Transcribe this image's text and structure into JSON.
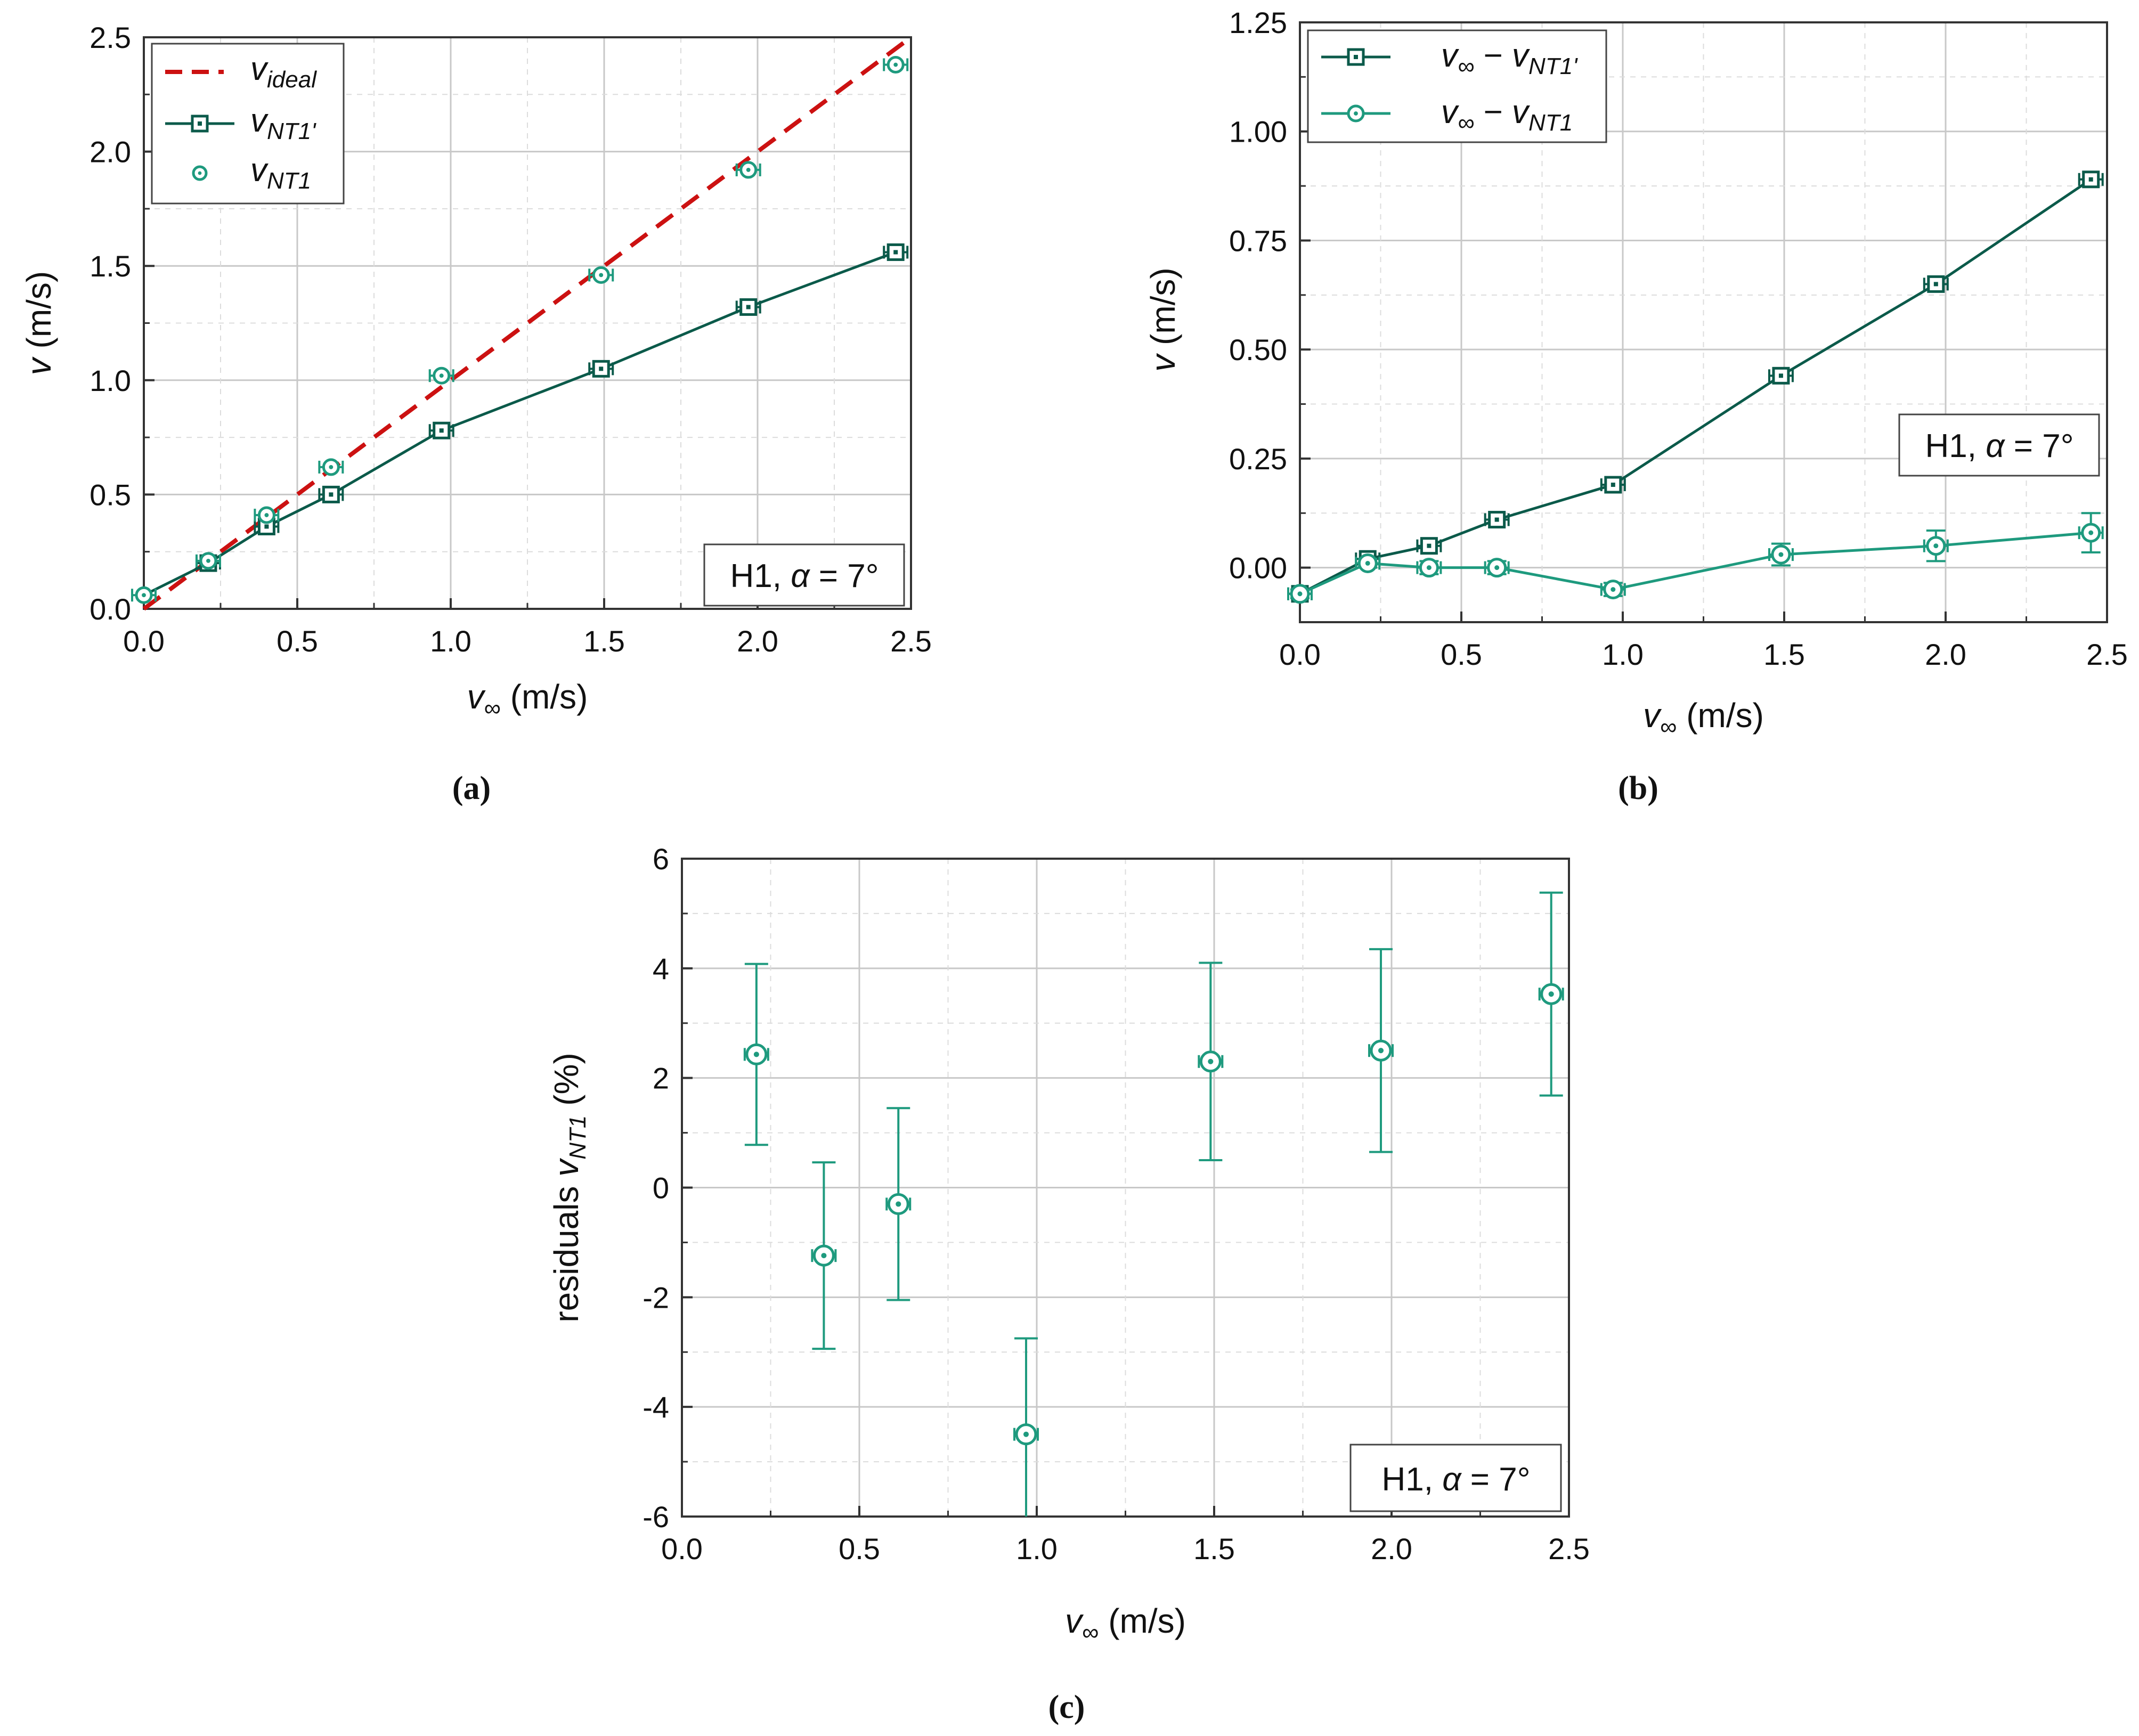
{
  "colors": {
    "dark": "#0b5a4a",
    "light": "#1e9a7e",
    "ideal": "#cc1111",
    "grid": "#c8c8c8",
    "axis": "#333333"
  },
  "chart_data": [
    {
      "panel": "a",
      "type": "line",
      "caption": "(a)",
      "xlabel": "v∞ (m/s)",
      "ylabel": "v (m/s)",
      "xlim": [
        0,
        2.5
      ],
      "ylim": [
        0,
        2.5
      ],
      "xticks": [
        "0.0",
        "0.5",
        "1.0",
        "1.5",
        "2.0",
        "2.5"
      ],
      "yticks": [
        "0.0",
        "0.5",
        "1.0",
        "1.5",
        "2.0",
        "2.5"
      ],
      "annotation": "H1, α = 7°",
      "legend": [
        "v_ideal",
        "v_NT1'",
        "v_NT1"
      ],
      "x": [
        0.0,
        0.21,
        0.4,
        0.61,
        0.97,
        1.49,
        1.97,
        2.45
      ],
      "series": [
        {
          "name": "v_ideal",
          "style": "dashed",
          "x": [
            0,
            2.5
          ],
          "values": [
            0,
            2.5
          ]
        },
        {
          "name": "v_NT1'",
          "style": "line-square",
          "values": [
            0.06,
            0.2,
            0.36,
            0.5,
            0.78,
            1.05,
            1.32,
            1.56
          ]
        },
        {
          "name": "v_NT1",
          "style": "circle",
          "values": [
            0.06,
            0.21,
            0.41,
            0.62,
            1.02,
            1.46,
            1.92,
            2.38
          ]
        }
      ]
    },
    {
      "panel": "b",
      "type": "line",
      "caption": "(b)",
      "xlabel": "v∞ (m/s)",
      "ylabel": "v (m/s)",
      "xlim": [
        0,
        2.5
      ],
      "ylim": [
        -0.125,
        1.25
      ],
      "xticks": [
        "0.0",
        "0.5",
        "1.0",
        "1.5",
        "2.0",
        "2.5"
      ],
      "yticks": [
        "0.00",
        "0.25",
        "0.50",
        "0.75",
        "1.00",
        "1.25"
      ],
      "annotation": "H1, α = 7°",
      "legend": [
        "v∞ − v_NT1'",
        "v∞ − v_NT1"
      ],
      "x": [
        0.0,
        0.21,
        0.4,
        0.61,
        0.97,
        1.49,
        1.97,
        2.45
      ],
      "series": [
        {
          "name": "v∞ − v_NT1'",
          "values": [
            -0.06,
            0.02,
            0.05,
            0.11,
            0.19,
            0.44,
            0.65,
            0.89
          ]
        },
        {
          "name": "v∞ − v_NT1",
          "values": [
            -0.06,
            0.01,
            0.0,
            0.0,
            -0.05,
            0.03,
            0.05,
            0.08
          ],
          "yerr": [
            0.01,
            0.01,
            0.015,
            0.015,
            0.015,
            0.025,
            0.035,
            0.045
          ]
        }
      ]
    },
    {
      "panel": "c",
      "type": "scatter",
      "caption": "(c)",
      "xlabel": "v∞ (m/s)",
      "ylabel": "residuals v_NT1 (%)",
      "xlim": [
        0,
        2.5
      ],
      "ylim": [
        -6,
        6
      ],
      "xticks": [
        "0.0",
        "0.5",
        "1.0",
        "1.5",
        "2.0",
        "2.5"
      ],
      "yticks": [
        "-6",
        "-4",
        "-2",
        "0",
        "2",
        "4",
        "6"
      ],
      "annotation": "H1, α = 7°",
      "x": [
        0.21,
        0.4,
        0.61,
        0.97,
        1.49,
        1.97,
        2.45
      ],
      "values": [
        2.43,
        -1.24,
        -0.3,
        -4.5,
        2.3,
        2.5,
        3.53
      ],
      "yerr_lo": [
        1.65,
        1.7,
        1.75,
        1.6,
        1.8,
        1.85,
        1.85
      ],
      "yerr_hi": [
        1.65,
        1.7,
        1.75,
        1.75,
        1.8,
        1.85,
        1.85
      ]
    }
  ]
}
